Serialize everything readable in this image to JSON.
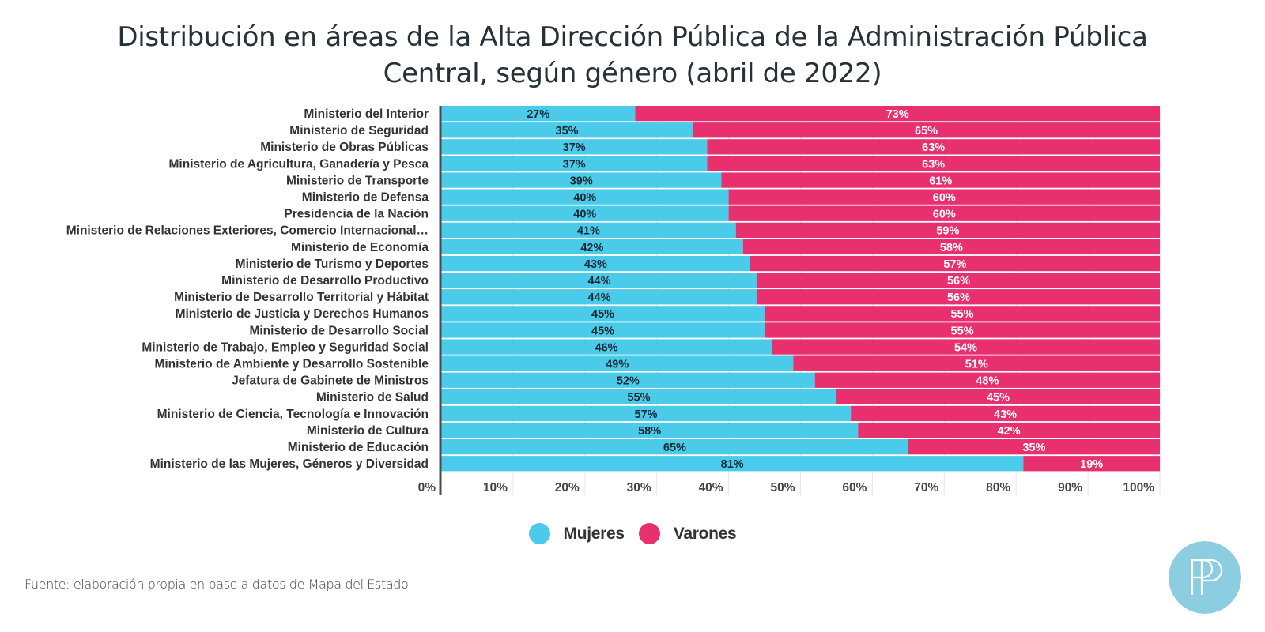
{
  "chart_data": {
    "type": "bar",
    "orientation": "horizontal",
    "stacked": "percent",
    "title": "Distribución en áreas de la Alta Dirección Pública de la Administración Pública Central, según género (abril de 2022)",
    "title_lines": [
      "Distribución en áreas de la Alta Dirección Pública de la Administración Pública",
      "Central, según género (abril de 2022)"
    ],
    "xlabel": "",
    "ylabel": "",
    "xlim": [
      0,
      100
    ],
    "x_ticks": [
      "0%",
      "10%",
      "20%",
      "30%",
      "40%",
      "50%",
      "60%",
      "70%",
      "80%",
      "90%",
      "100%"
    ],
    "grid": true,
    "legend_position": "bottom-center",
    "categories": [
      "Ministerio del Interior",
      "Ministerio de Seguridad",
      "Ministerio de Obras Públicas",
      "Ministerio de Agricultura, Ganadería y Pesca",
      "Ministerio de Transporte",
      "Ministerio de Defensa",
      "Presidencia de la Nación",
      "Ministerio de Relaciones Exteriores, Comercio Internacional…",
      "Ministerio de Economía",
      "Ministerio de Turismo y Deportes",
      "Ministerio de Desarrollo Productivo",
      "Ministerio de Desarrollo Territorial y Hábitat",
      "Ministerio de Justicia y Derechos Humanos",
      "Ministerio de Desarrollo Social",
      "Ministerio de Trabajo, Empleo y Seguridad Social",
      "Ministerio de Ambiente y Desarrollo Sostenible",
      "Jefatura de Gabinete de Ministros",
      "Ministerio de Salud",
      "Ministerio de Ciencia, Tecnología e Innovación",
      "Ministerio de Cultura",
      "Ministerio de Educación",
      "Ministerio de las Mujeres, Géneros y Diversidad"
    ],
    "series": [
      {
        "name": "Mujeres",
        "color": "#4ACBEA",
        "values": [
          27,
          35,
          37,
          37,
          39,
          40,
          40,
          41,
          42,
          43,
          44,
          44,
          45,
          45,
          46,
          49,
          52,
          55,
          57,
          58,
          65,
          81
        ]
      },
      {
        "name": "Varones",
        "color": "#E8306F",
        "values": [
          73,
          65,
          63,
          63,
          61,
          60,
          60,
          59,
          58,
          57,
          56,
          56,
          55,
          55,
          54,
          51,
          48,
          45,
          43,
          42,
          35,
          19
        ]
      }
    ]
  },
  "legend": [
    {
      "label": "Mujeres",
      "color": "#4ACBEA"
    },
    {
      "label": "Varones",
      "color": "#E8306F"
    }
  ],
  "source_note": "Fuente: elaboración propia en base a datos de Mapa del Estado.",
  "logo": {
    "text": "PP",
    "color": "#8DCDE2"
  }
}
